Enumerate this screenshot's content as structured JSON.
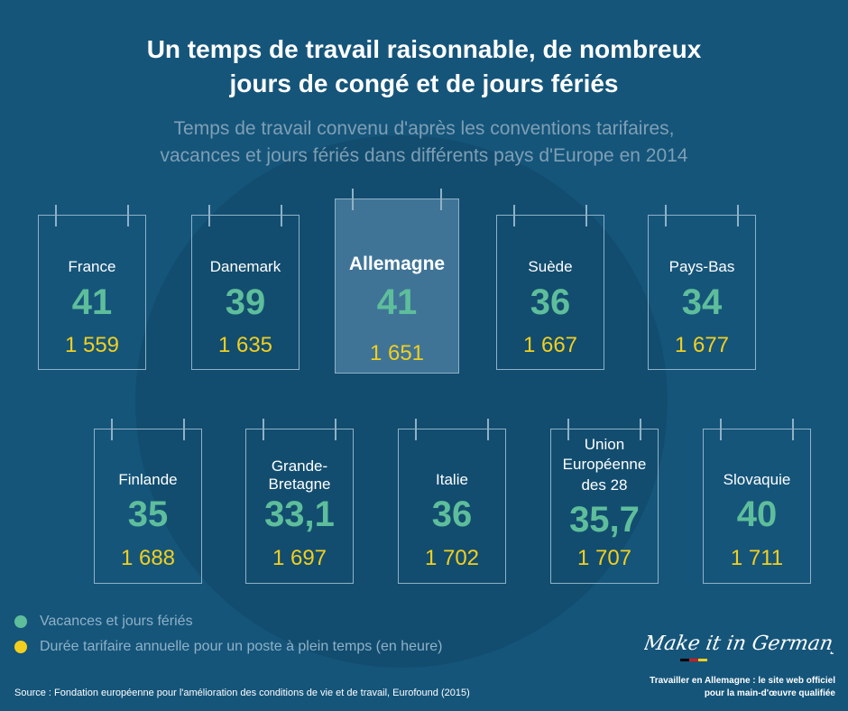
{
  "title_line1": "Un temps de travail raisonnable, de nombreux",
  "title_line2": "jours de congé et de jours fériés",
  "subtitle_line1": "Temps de travail convenu d'après les conventions tarifaires,",
  "subtitle_line2": "vacances et jours fériés dans différents pays d'Europe en 2014",
  "countries": [
    {
      "name": "France",
      "holidays": "41",
      "hours": "1 559"
    },
    {
      "name": "Danemark",
      "holidays": "39",
      "hours": "1 635"
    },
    {
      "name": "Allemagne",
      "holidays": "41",
      "hours": "1 651"
    },
    {
      "name": "Suède",
      "holidays": "36",
      "hours": "1 667"
    },
    {
      "name": "Pays-Bas",
      "holidays": "34",
      "hours": "1 677"
    },
    {
      "name": "Finlande",
      "holidays": "35",
      "hours": "1 688"
    },
    {
      "name_line1": "Grande-",
      "name_line2": "Bretagne",
      "holidays": "33,1",
      "hours": "1 697"
    },
    {
      "name": "Italie",
      "holidays": "36",
      "hours": "1 702"
    },
    {
      "name_line1": "Union",
      "name_line2": "Européenne",
      "name_line3": "des 28",
      "holidays": "35,7",
      "hours": "1 707"
    },
    {
      "name": "Slovaquie",
      "holidays": "40",
      "hours": "1 711"
    }
  ],
  "legend": {
    "holidays_label": "Vacances et jours fériés",
    "hours_label": "Durée tarifaire annuelle pour un poste à plein temps (en heure)",
    "holidays_color": "#5ebe9b",
    "hours_color": "#f2cf1e"
  },
  "source": "Source : Fondation européenne pour l'amélioration des conditions de vie et de travail, Eurofound (2015)",
  "logo": {
    "wordmark": "Make it in Germany",
    "caption_line1": "Travailler en Allemagne : le site web officiel",
    "caption_line2": "pour la main-d'œuvre qualifiée"
  },
  "colors": {
    "background": "#15557a",
    "highlight_card": "#3f7497",
    "card_border": "#8fb1c7"
  }
}
